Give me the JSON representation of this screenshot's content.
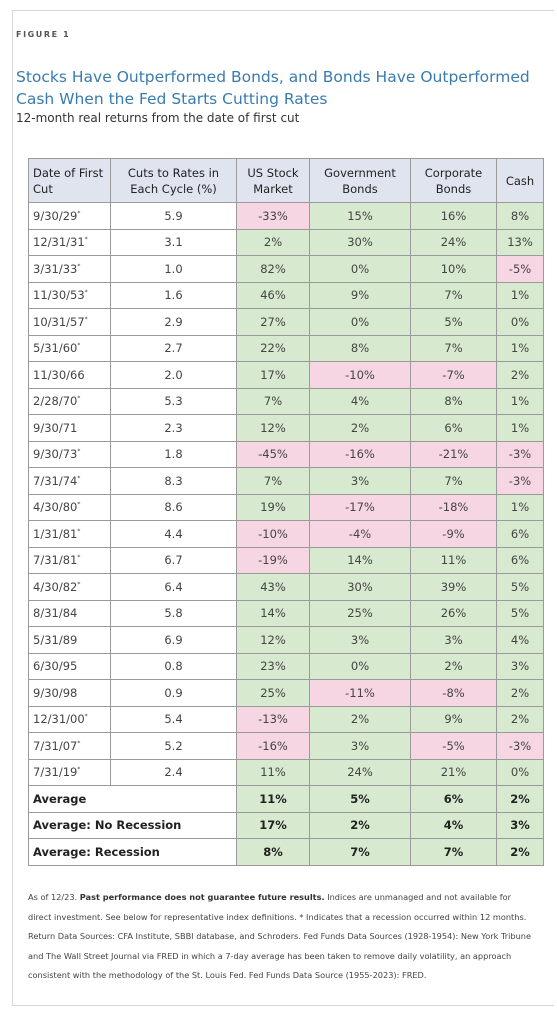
{
  "figure_label": "FIGURE 1",
  "title": "Stocks Have Outperformed Bonds, and Bonds Have Outperformed Cash When the Fed Starts Cutting Rates",
  "subtitle": "12-month real returns from the date of first cut",
  "colors": {
    "positive": "#d7e9cf",
    "negative": "#f7d6e3",
    "header": "#dfe4ef",
    "title": "#3a7cae"
  },
  "chart_data": {
    "type": "table",
    "columns": [
      "Date of First Cut",
      "Cuts to Rates in Each Cycle (%)",
      "US Stock Market",
      "Government Bonds",
      "Corporate Bonds",
      "Cash"
    ],
    "rows": [
      {
        "date": "9/30/29",
        "star": "*",
        "cut": "5.9",
        "stock": "-33%",
        "gov": "15%",
        "corp": "16%",
        "cash": "8%"
      },
      {
        "date": "12/31/31",
        "star": "*",
        "cut": "3.1",
        "stock": "2%",
        "gov": "30%",
        "corp": "24%",
        "cash": "13%"
      },
      {
        "date": "3/31/33",
        "star": "*",
        "cut": "1.0",
        "stock": "82%",
        "gov": "0%",
        "corp": "10%",
        "cash": "-5%"
      },
      {
        "date": "11/30/53",
        "star": "*",
        "cut": "1.6",
        "stock": "46%",
        "gov": "9%",
        "corp": "7%",
        "cash": "1%"
      },
      {
        "date": "10/31/57",
        "star": "*",
        "cut": "2.9",
        "stock": "27%",
        "gov": "0%",
        "corp": "5%",
        "cash": "0%"
      },
      {
        "date": "5/31/60",
        "star": "*",
        "cut": "2.7",
        "stock": "22%",
        "gov": "8%",
        "corp": "7%",
        "cash": "1%"
      },
      {
        "date": "11/30/66",
        "star": "",
        "cut": "2.0",
        "stock": "17%",
        "gov": "-10%",
        "corp": "-7%",
        "cash": "2%"
      },
      {
        "date": "2/28/70",
        "star": "*",
        "cut": "5.3",
        "stock": "7%",
        "gov": "4%",
        "corp": "8%",
        "cash": "1%"
      },
      {
        "date": "9/30/71",
        "star": "",
        "cut": "2.3",
        "stock": "12%",
        "gov": "2%",
        "corp": "6%",
        "cash": "1%"
      },
      {
        "date": "9/30/73",
        "star": "*",
        "cut": "1.8",
        "stock": "-45%",
        "gov": "-16%",
        "corp": "-21%",
        "cash": "-3%"
      },
      {
        "date": "7/31/74",
        "star": "*",
        "cut": "8.3",
        "stock": "7%",
        "gov": "3%",
        "corp": "7%",
        "cash": "-3%"
      },
      {
        "date": "4/30/80",
        "star": "*",
        "cut": "8.6",
        "stock": "19%",
        "gov": "-17%",
        "corp": "-18%",
        "cash": "1%"
      },
      {
        "date": "1/31/81",
        "star": "*",
        "cut": "4.4",
        "stock": "-10%",
        "gov": "-4%",
        "corp": "-9%",
        "cash": "6%"
      },
      {
        "date": "7/31/81",
        "star": "*",
        "cut": "6.7",
        "stock": "-19%",
        "gov": "14%",
        "corp": "11%",
        "cash": "6%"
      },
      {
        "date": "4/30/82",
        "star": "*",
        "cut": "6.4",
        "stock": "43%",
        "gov": "30%",
        "corp": "39%",
        "cash": "5%"
      },
      {
        "date": "8/31/84",
        "star": "",
        "cut": "5.8",
        "stock": "14%",
        "gov": "25%",
        "corp": "26%",
        "cash": "5%"
      },
      {
        "date": "5/31/89",
        "star": "",
        "cut": "6.9",
        "stock": "12%",
        "gov": "3%",
        "corp": "3%",
        "cash": "4%"
      },
      {
        "date": "6/30/95",
        "star": "",
        "cut": "0.8",
        "stock": "23%",
        "gov": "0%",
        "corp": "2%",
        "cash": "3%"
      },
      {
        "date": "9/30/98",
        "star": "",
        "cut": "0.9",
        "stock": "25%",
        "gov": "-11%",
        "corp": "-8%",
        "cash": "2%"
      },
      {
        "date": "12/31/00",
        "star": "*",
        "cut": "5.4",
        "stock": "-13%",
        "gov": "2%",
        "corp": "9%",
        "cash": "2%"
      },
      {
        "date": "7/31/07",
        "star": "*",
        "cut": "5.2",
        "stock": "-16%",
        "gov": "3%",
        "corp": "-5%",
        "cash": "-3%"
      },
      {
        "date": "7/31/19",
        "star": "*",
        "cut": "2.4",
        "stock": "11%",
        "gov": "24%",
        "corp": "21%",
        "cash": "0%"
      }
    ],
    "averages": [
      {
        "label": "Average",
        "stock": "11%",
        "gov": "5%",
        "corp": "6%",
        "cash": "2%"
      },
      {
        "label": "Average: No Recession",
        "stock": "17%",
        "gov": "2%",
        "corp": "4%",
        "cash": "3%"
      },
      {
        "label": "Average: Recession",
        "stock": "8%",
        "gov": "7%",
        "corp": "7%",
        "cash": "2%"
      }
    ]
  },
  "footnote": {
    "as_of": "As of 12/23.",
    "bold": "Past performance does not guarantee future results.",
    "body": "Indices are unmanaged and not available for direct investment. See below for representative index definitions. * Indicates that a recession occurred within 12 months. Return Data Sources: CFA Institute, SBBI database, and Schroders. Fed Funds Data Sources (1928-1954): New York Tribune and The Wall Street Journal via FRED in which a 7-day average has been taken to remove daily volatility, an approach consistent with the methodology of the St. Louis Fed. Fed Funds Data Source (1955-2023): FRED."
  }
}
